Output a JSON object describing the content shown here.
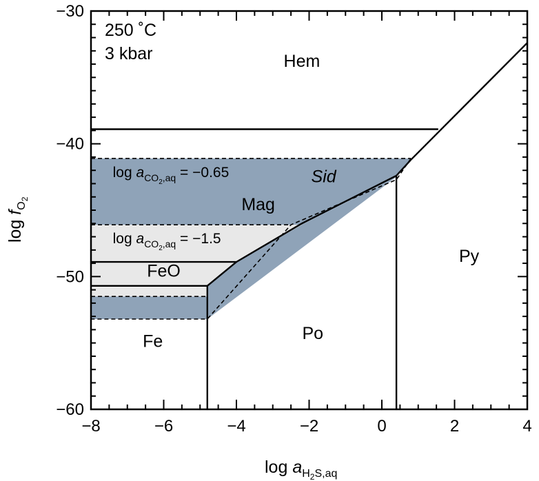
{
  "chart_data": {
    "type": "phase-diagram",
    "title": "",
    "conditions": [
      "250 ˚C",
      "3 kbar"
    ],
    "xlabel": {
      "main": "log ",
      "italic": "a",
      "sub": "H",
      "sub2": "2",
      "sub3": "S,aq"
    },
    "ylabel": {
      "main": "log ",
      "italic": "f",
      "sub": "O",
      "sub2": "2"
    },
    "xlim": [
      -8,
      4
    ],
    "ylim": [
      -60,
      -30
    ],
    "x_ticks": [
      -8,
      -6,
      -4,
      -2,
      0,
      2,
      4
    ],
    "x_tick_labels": [
      "−8",
      "−6",
      "−4",
      "−2",
      "0",
      "2",
      "4"
    ],
    "y_ticks": [
      -60,
      -50,
      -40,
      -30
    ],
    "y_tick_labels": [
      "−60",
      "−50",
      "−40",
      "−30"
    ],
    "colors": {
      "siderite_field": "#8fa3b8",
      "siderite_field_low": "#e8e8e8",
      "line": "#000000",
      "background": "#ffffff"
    },
    "fields": [
      {
        "name": "Hem",
        "at": [
          -2.2,
          -34.2
        ]
      },
      {
        "name": "Mag",
        "at": [
          -3.4,
          -45.0
        ]
      },
      {
        "name": "FeO",
        "at": [
          -6.0,
          -50.0
        ]
      },
      {
        "name": "Fe",
        "at": [
          -6.3,
          -55.3
        ]
      },
      {
        "name": "Po",
        "at": [
          -1.9,
          -54.7
        ]
      },
      {
        "name": "Py",
        "at": [
          2.4,
          -48.9
        ]
      },
      {
        "name": "Sid",
        "at": [
          -1.6,
          -42.9
        ],
        "italic": true
      }
    ],
    "co2_labels": [
      {
        "prefix": "log ",
        "italic": "a",
        "sub": "CO",
        "sub2": "2",
        "sub3": ",aq",
        "value": " = −0.65",
        "at": [
          -7.4,
          -42.5
        ]
      },
      {
        "prefix": "log ",
        "italic": "a",
        "sub": "CO",
        "sub2": "2",
        "sub3": ",aq",
        "value": " = −1.5",
        "at": [
          -7.4,
          -47.5
        ]
      }
    ],
    "boundaries": [
      {
        "kind": "solid",
        "points": [
          [
            -8,
            -38.9
          ],
          [
            1.55,
            -38.9
          ]
        ]
      },
      {
        "kind": "solid",
        "points": [
          [
            0.8,
            -41.2
          ],
          [
            4,
            -32.4
          ]
        ]
      },
      {
        "kind": "solid",
        "points": [
          [
            0.8,
            -41.2
          ],
          [
            0.4,
            -42.4
          ]
        ]
      },
      {
        "kind": "solid",
        "points": [
          [
            0.4,
            -42.4
          ],
          [
            0.4,
            -60
          ]
        ]
      },
      {
        "kind": "solid",
        "points": [
          [
            0.4,
            -42.4
          ],
          [
            -2.2,
            -46.0
          ],
          [
            -4.0,
            -48.9
          ],
          [
            -8,
            -48.9
          ]
        ]
      },
      {
        "kind": "solid",
        "points": [
          [
            -4.0,
            -48.9
          ],
          [
            -4.8,
            -50.7
          ]
        ]
      },
      {
        "kind": "solid",
        "points": [
          [
            -8,
            -50.7
          ],
          [
            -4.8,
            -50.7
          ],
          [
            -4.8,
            -60
          ]
        ]
      },
      {
        "kind": "dashed",
        "points": [
          [
            -8,
            -41.1
          ],
          [
            0.8,
            -41.1
          ]
        ]
      },
      {
        "kind": "dashed",
        "points": [
          [
            0.8,
            -41.1
          ],
          [
            0.4,
            -42.7
          ],
          [
            -2.5,
            -46.1
          ],
          [
            -4.8,
            -53.2
          ],
          [
            -8,
            -53.2
          ]
        ]
      },
      {
        "kind": "dashed",
        "points": [
          [
            -8,
            -46.1
          ],
          [
            -2.5,
            -46.1
          ]
        ]
      },
      {
        "kind": "dashed",
        "points": [
          [
            -8,
            -51.5
          ],
          [
            -4.8,
            -51.5
          ]
        ]
      }
    ],
    "shaded_regions": [
      {
        "fill": "siderite_field",
        "points": [
          [
            -8,
            -41.1
          ],
          [
            0.8,
            -41.1
          ],
          [
            0.4,
            -42.5
          ],
          [
            -2.2,
            -46.1
          ],
          [
            -8,
            -46.1
          ]
        ]
      },
      {
        "fill": "siderite_field_low",
        "points": [
          [
            -8,
            -46.1
          ],
          [
            -2.2,
            -46.1
          ],
          [
            -4.0,
            -48.9
          ],
          [
            -8,
            -48.9
          ]
        ]
      },
      {
        "fill": "siderite_field_low",
        "points": [
          [
            -8,
            -48.9
          ],
          [
            -4.0,
            -48.9
          ],
          [
            -4.8,
            -50.7
          ],
          [
            -8,
            -50.7
          ]
        ]
      },
      {
        "fill": "siderite_field_low",
        "points": [
          [
            -8,
            -50.7
          ],
          [
            -4.8,
            -50.7
          ],
          [
            -4.8,
            -51.5
          ],
          [
            -8,
            -51.5
          ]
        ]
      },
      {
        "fill": "siderite_field",
        "points": [
          [
            -2.2,
            -46.1
          ],
          [
            0.4,
            -42.5
          ],
          [
            -4.8,
            -53.2
          ],
          [
            -8,
            -53.2
          ],
          [
            -8,
            -51.5
          ],
          [
            -4.8,
            -51.5
          ],
          [
            -4.8,
            -50.7
          ],
          [
            -4.0,
            -48.9
          ]
        ]
      }
    ]
  }
}
